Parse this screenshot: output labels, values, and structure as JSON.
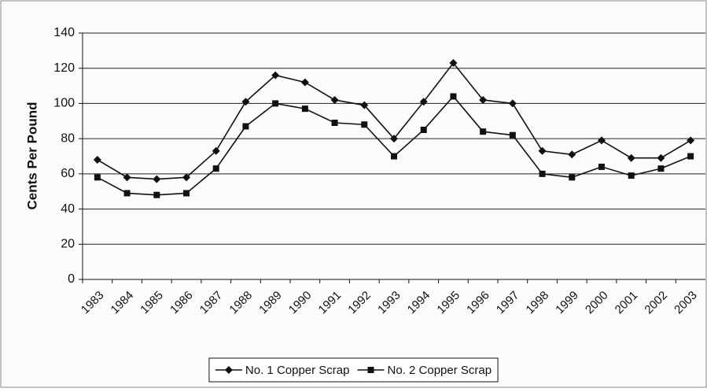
{
  "chart_data": {
    "type": "line",
    "y_label": "Cents Per Pound",
    "categories": [
      "1983",
      "1984",
      "1985",
      "1986",
      "1987",
      "1988",
      "1989",
      "1990",
      "1991",
      "1992",
      "1993",
      "1994",
      "1995",
      "1996",
      "1997",
      "1998",
      "1999",
      "2000",
      "2001",
      "2002",
      "2003"
    ],
    "series": [
      {
        "name": "No. 1 Copper Scrap",
        "color": "#111111",
        "marker": "diamond",
        "values": [
          68,
          58,
          57,
          58,
          73,
          101,
          116,
          112,
          102,
          99,
          80,
          101,
          123,
          102,
          100,
          73,
          71,
          79,
          69,
          69,
          79
        ]
      },
      {
        "name": "No. 2 Copper Scrap",
        "color": "#111111",
        "marker": "square",
        "values": [
          58,
          49,
          48,
          49,
          63,
          87,
          100,
          97,
          89,
          88,
          70,
          85,
          104,
          84,
          82,
          60,
          58,
          64,
          59,
          63,
          70
        ]
      }
    ],
    "ylim": [
      0,
      140
    ],
    "yticks": [
      0,
      20,
      40,
      60,
      80,
      100,
      120,
      140
    ],
    "grid": true,
    "legend": "bottom"
  }
}
